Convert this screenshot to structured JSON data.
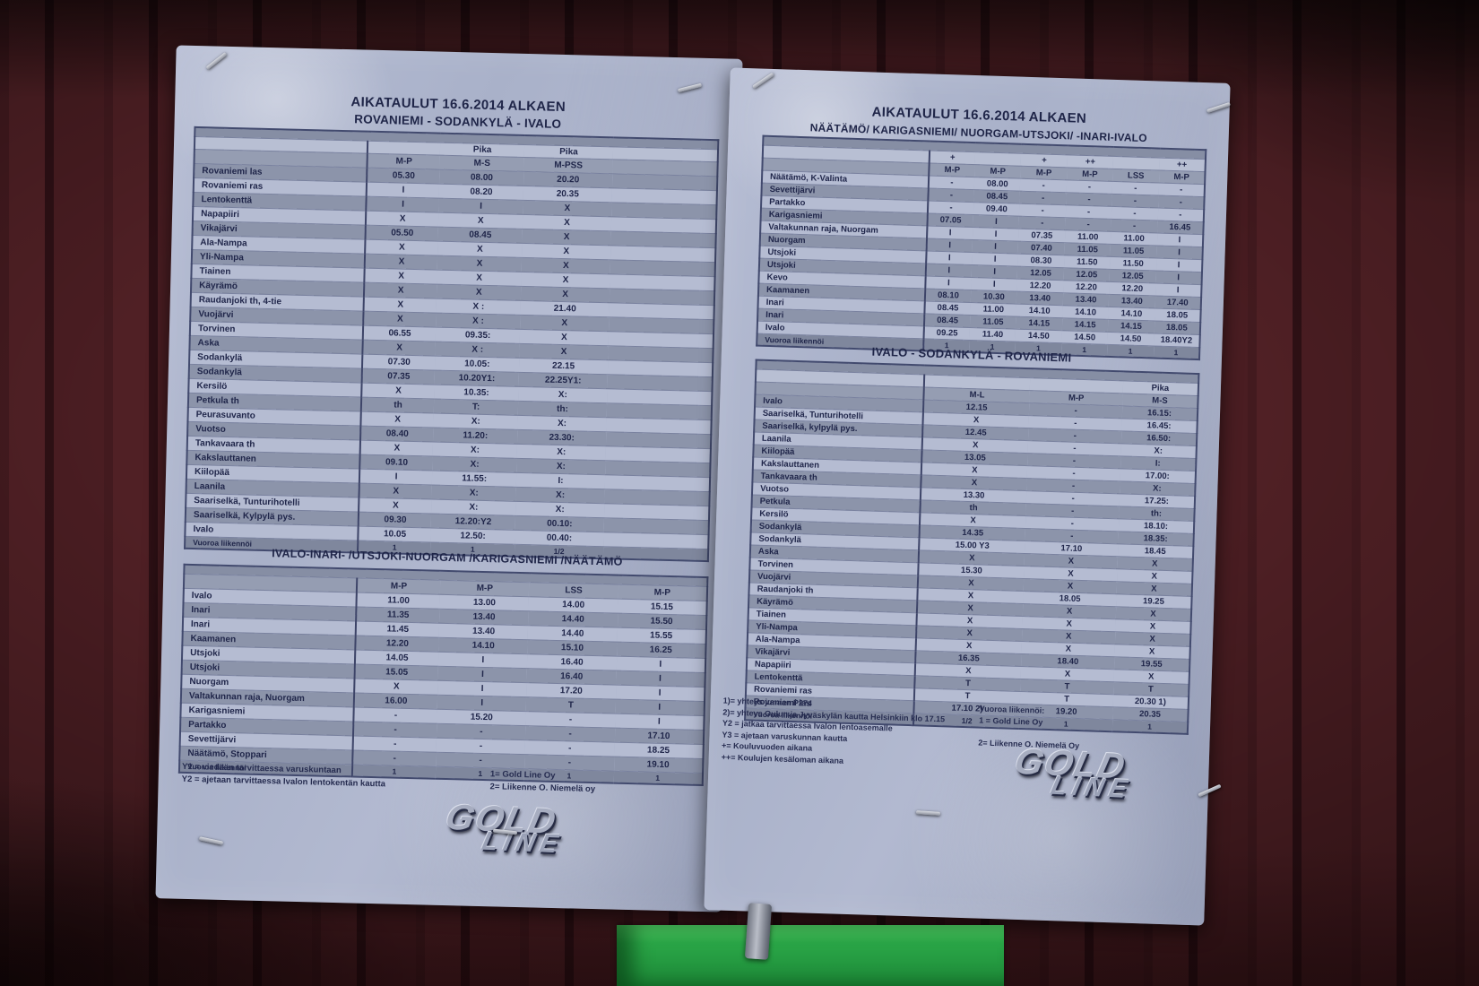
{
  "left_page": {
    "title": "AIKATAULUT 16.6.2014 ALKAEN",
    "subtitle": "ROVANIEMI - SODANKYLÄ - IVALO",
    "table1": {
      "header_top": [
        "",
        "",
        "Pika",
        "Pika",
        ""
      ],
      "header_bottom": [
        "",
        "M-P",
        "M-S",
        "M-PSS",
        ""
      ],
      "rows": [
        [
          "Rovaniemi las",
          "05.30",
          "08.00",
          "20.20",
          ""
        ],
        [
          "Rovaniemi ras",
          "I",
          "08.20",
          "20.35",
          ""
        ],
        [
          "Lentokenttä",
          "I",
          "I",
          "X",
          ""
        ],
        [
          "Napapiiri",
          "X",
          "X",
          "X",
          ""
        ],
        [
          "Vikajärvi",
          "05.50",
          "08.45",
          "X",
          ""
        ],
        [
          "Ala-Nampa",
          "X",
          "X",
          "X",
          ""
        ],
        [
          "Yli-Nampa",
          "X",
          "X",
          "X",
          ""
        ],
        [
          "Tiainen",
          "X",
          "X",
          "X",
          ""
        ],
        [
          "Käyrämö",
          "X",
          "X",
          "X",
          ""
        ],
        [
          "Raudanjoki th, 4-tie",
          "X",
          "X :",
          "21.40",
          ""
        ],
        [
          "Vuojärvi",
          "X",
          "X :",
          "X",
          ""
        ],
        [
          "Torvinen",
          "06.55",
          "09.35:",
          "X",
          ""
        ],
        [
          "Aska",
          "X",
          "X :",
          "X",
          ""
        ],
        [
          "Sodankylä",
          "07.30",
          "10.05:",
          "22.15",
          ""
        ],
        [
          "Sodankylä",
          "07.35",
          "10.20Y1:",
          "22.25Y1:",
          ""
        ],
        [
          "Kersilö",
          "X",
          "10.35:",
          "X:",
          ""
        ],
        [
          "Petkula th",
          "th",
          "T:",
          "th:",
          ""
        ],
        [
          "Peurasuvanto",
          "X",
          "X:",
          "X:",
          ""
        ],
        [
          "Vuotso",
          "08.40",
          "11.20:",
          "23.30:",
          ""
        ],
        [
          "Tankavaara th",
          "X",
          "X:",
          "X:",
          ""
        ],
        [
          "Kakslauttanen",
          "09.10",
          "X:",
          "X:",
          ""
        ],
        [
          "Kiilopää",
          "I",
          "11.55:",
          "I:",
          ""
        ],
        [
          "Laanila",
          "X",
          "X:",
          "X:",
          ""
        ],
        [
          "Saariselkä, Tunturihotelli",
          "X",
          "X:",
          "X:",
          ""
        ],
        [
          "Saariselkä, Kylpylä pys.",
          "09.30",
          "12.20:Y2",
          "00.10:",
          ""
        ],
        [
          "Ivalo",
          "10.05",
          "12.50:",
          "00.40:",
          ""
        ]
      ],
      "footer": [
        "Vuoroa liikennöi",
        "1",
        "1",
        "1/2",
        ""
      ]
    },
    "table2_title": "IVALO-INARI- /UTSJOKI-NUORGAM /KARIGASNIEMI /NÄÄTÄMÖ",
    "table2": {
      "header_bottom": [
        "",
        "M-P",
        "M-P",
        "LSS",
        "M-P"
      ],
      "rows": [
        [
          "Ivalo",
          "11.00",
          "13.00",
          "14.00",
          "15.15"
        ],
        [
          "Inari",
          "11.35",
          "13.40",
          "14.40",
          "15.50"
        ],
        [
          "Inari",
          "11.45",
          "13.40",
          "14.40",
          "15.55"
        ],
        [
          "Kaamanen",
          "12.20",
          "14.10",
          "15.10",
          "16.25"
        ],
        [
          "Utsjoki",
          "14.05",
          "I",
          "16.40",
          "I"
        ],
        [
          "Utsjoki",
          "15.05",
          "I",
          "16.40",
          "I"
        ],
        [
          "Nuorgam",
          "X",
          "I",
          "17.20",
          "I"
        ],
        [
          "Valtakunnan raja, Nuorgam",
          "16.00",
          "I",
          "T",
          "I"
        ],
        [
          "Karigasniemi",
          "-",
          "15.20",
          "-",
          "I"
        ],
        [
          "Partakko",
          "-",
          "-",
          "-",
          "17.10"
        ],
        [
          "Sevettijärvi",
          "-",
          "-",
          "-",
          "18.25"
        ],
        [
          "Näätämö, Stoppari",
          "-",
          "-",
          "-",
          "19.10"
        ]
      ],
      "footer": [
        "Vuoroa liikennöi",
        "1",
        "1",
        "1",
        "1"
      ]
    },
    "footnotes_left": [
      "Y1 =  viedään tarvittaessa varuskuntaan",
      "Y2 =  ajetaan tarvittaessa Ivalon lentokentän kautta"
    ],
    "footnotes_right": [
      "1= Gold Line Oy",
      "2= Liikenne O. Niemelä oy"
    ],
    "logo": {
      "line1": "GOLD",
      "line2": "LINE"
    }
  },
  "right_page": {
    "title": "AIKATAULUT 16.6.2014 ALKAEN",
    "subtitle": "NÄÄTÄMÖ/ KARIGASNIEMI/ NUORGAM-UTSJOKI/ -INARI-IVALO",
    "table1": {
      "header_top": [
        "",
        "+",
        "",
        "+",
        "++",
        "",
        "++"
      ],
      "header_bottom": [
        "",
        "M-P",
        "M-P",
        "M-P",
        "M-P",
        "LSS",
        "M-P"
      ],
      "rows": [
        [
          "Näätämö, K-Valinta",
          "-",
          "08.00",
          "-",
          "-",
          "-",
          "-"
        ],
        [
          "Sevettijärvi",
          "-",
          "08.45",
          "-",
          "-",
          "-",
          "-"
        ],
        [
          "Partakko",
          "-",
          "09.40",
          "-",
          "-",
          "-",
          "-"
        ],
        [
          "Karigasniemi",
          "07.05",
          "I",
          "-",
          "-",
          "-",
          "16.45"
        ],
        [
          "Valtakunnan raja, Nuorgam",
          "I",
          "I",
          "07.35",
          "11.00",
          "11.00",
          "I"
        ],
        [
          "Nuorgam",
          "I",
          "I",
          "07.40",
          "11.05",
          "11.05",
          "I"
        ],
        [
          "Utsjoki",
          "I",
          "I",
          "08.30",
          "11.50",
          "11.50",
          "I"
        ],
        [
          "Utsjoki",
          "I",
          "I",
          "12.05",
          "12.05",
          "12.05",
          "I"
        ],
        [
          "Kevo",
          "I",
          "I",
          "12.20",
          "12.20",
          "12.20",
          "I"
        ],
        [
          "Kaamanen",
          "08.10",
          "10.30",
          "13.40",
          "13.40",
          "13.40",
          "17.40"
        ],
        [
          "Inari",
          "08.45",
          "11.00",
          "14.10",
          "14.10",
          "14.10",
          "18.05"
        ],
        [
          "Inari",
          "08.45",
          "11.05",
          "14.15",
          "14.15",
          "14.15",
          "18.05"
        ],
        [
          "Ivalo",
          "09.25",
          "11.40",
          "14.50",
          "14.50",
          "14.50",
          "18.40Y2"
        ]
      ],
      "footer": [
        "Vuoroa liikennöi",
        "1",
        "1",
        "1",
        "1",
        "1",
        "1"
      ]
    },
    "table2_title": "IVALO - SODANKYLÄ - ROVANIEMI",
    "table2": {
      "header_top": [
        "",
        "",
        "",
        "Pika"
      ],
      "header_bottom": [
        "",
        "M-L",
        "M-P",
        "M-S"
      ],
      "rows": [
        [
          "Ivalo",
          "12.15",
          "-",
          "16.15:"
        ],
        [
          "Saariselkä, Tunturihotelli",
          "X",
          "-",
          "16.45:"
        ],
        [
          "Saariselkä, kylpylä pys.",
          "12.45",
          "-",
          "16.50:"
        ],
        [
          "Laanila",
          "X",
          "-",
          "X:"
        ],
        [
          "Kiilopää",
          "13.05",
          "-",
          "I:"
        ],
        [
          "Kakslauttanen",
          "X",
          "-",
          "17.00:"
        ],
        [
          "Tankavaara th",
          "X",
          "-",
          "X:"
        ],
        [
          "Vuotso",
          "13.30",
          "-",
          "17.25:"
        ],
        [
          "Petkula",
          "th",
          "-",
          "th:"
        ],
        [
          "Kersilö",
          "X",
          "-",
          "18.10:"
        ],
        [
          "Sodankylä",
          "14.35",
          "-",
          "18.35:"
        ],
        [
          "Sodankylä",
          "15.00 Y3",
          "17.10",
          "18.45"
        ],
        [
          "Aska",
          "X",
          "X",
          "X"
        ],
        [
          "Torvinen",
          "15.30",
          "X",
          "X"
        ],
        [
          "Vuojärvi",
          "X",
          "X",
          "X"
        ],
        [
          "Raudanjoki th",
          "X",
          "18.05",
          "19.25"
        ],
        [
          "Käyrämö",
          "X",
          "X",
          "X"
        ],
        [
          "Tiainen",
          "X",
          "X",
          "X"
        ],
        [
          "Yli-Nampa",
          "X",
          "X",
          "X"
        ],
        [
          "Ala-Nampa",
          "X",
          "X",
          "X"
        ],
        [
          "Vikajärvi",
          "16.35",
          "18.40",
          "19.55"
        ],
        [
          "Napapiiri",
          "X",
          "X",
          "X"
        ],
        [
          "Lentokenttä",
          "T",
          "T",
          "T"
        ],
        [
          "Rovaniemi ras",
          "T",
          "T",
          "20.30  1)"
        ],
        [
          "Rovaniemi las",
          "17.10 2)",
          "19.20",
          "20.35"
        ]
      ],
      "footer": [
        "Vuoroa liikennöi",
        "1/2",
        "1",
        "1"
      ]
    },
    "footnotes_left": [
      "1)=  yhteys junaan P274",
      "2)= yhteys Oulun ja Jyväskylän kautta Helsinkiin klo 17.15",
      "Y2 = jatkaa tarvittaessa Ivalon lentoasemalle",
      "Y3 = ajetaan varuskunnan kautta",
      "+= Kouluvuoden aikana",
      "++= Koulujen kesäloman aikana"
    ],
    "footnotes_right": [
      "Vuoroa liikennöi:",
      "1 = Gold Line Oy",
      "",
      "2= Liikenne O. Niemelä Oy"
    ],
    "logo": {
      "line1": "GOLD",
      "line2": "LINE"
    }
  }
}
